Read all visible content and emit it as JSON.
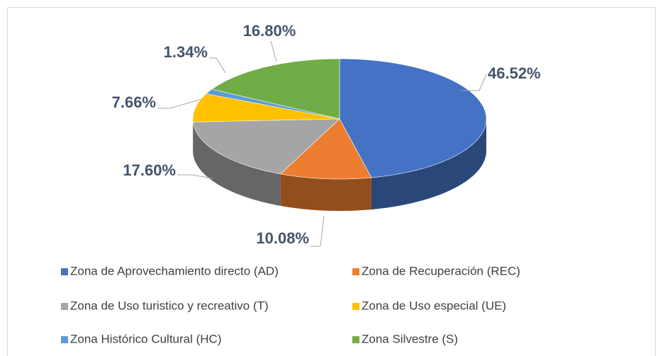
{
  "chart_data": {
    "type": "pie",
    "categories": [
      "Zona de Aprovechamiento directo (AD)",
      "Zona de Recuperación (REC)",
      "Zona de Uso turistico y recreativo (T)",
      "Zona de Uso especial (UE)",
      "Zona Histórico Cultural (HC)",
      "Zona Silvestre (S)"
    ],
    "values": [
      46.52,
      10.08,
      17.6,
      7.66,
      1.34,
      16.8
    ],
    "value_labels": [
      "46.52%",
      "10.08%",
      "17.60%",
      "7.66%",
      "1.34%",
      "16.80%"
    ],
    "colors": [
      "#4472c4",
      "#ed7d31",
      "#a5a5a5",
      "#ffc000",
      "#5b9bd5",
      "#70ad47"
    ],
    "legend": "bottom"
  }
}
